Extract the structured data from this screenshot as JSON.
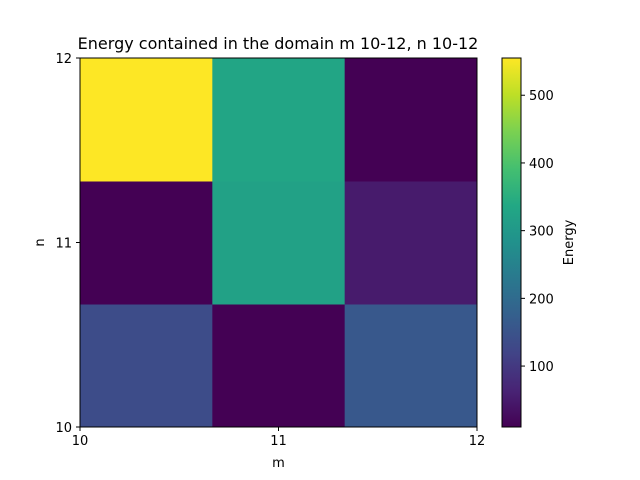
{
  "chart_data": {
    "type": "heatmap",
    "title": "Energy contained in the domain m 10-12, n 10-12",
    "xlabel": "m",
    "ylabel": "n",
    "xlim": [
      10,
      12
    ],
    "ylim": [
      10,
      12
    ],
    "x_ticks": [
      "10",
      "11",
      "12"
    ],
    "y_ticks": [
      "10",
      "11",
      "12"
    ],
    "columns": 3,
    "rows": 3,
    "values_bottom_to_top": [
      [
        135,
        10,
        160
      ],
      [
        10,
        320,
        50
      ],
      [
        555,
        330,
        10
      ]
    ],
    "colorbar": {
      "label": "Energy",
      "min": 10,
      "max": 555,
      "ticks": [
        "100",
        "200",
        "300",
        "400",
        "500"
      ],
      "tick_values": [
        100,
        200,
        300,
        400,
        500
      ],
      "colormap": "viridis"
    },
    "grid": false,
    "legend": "none"
  }
}
